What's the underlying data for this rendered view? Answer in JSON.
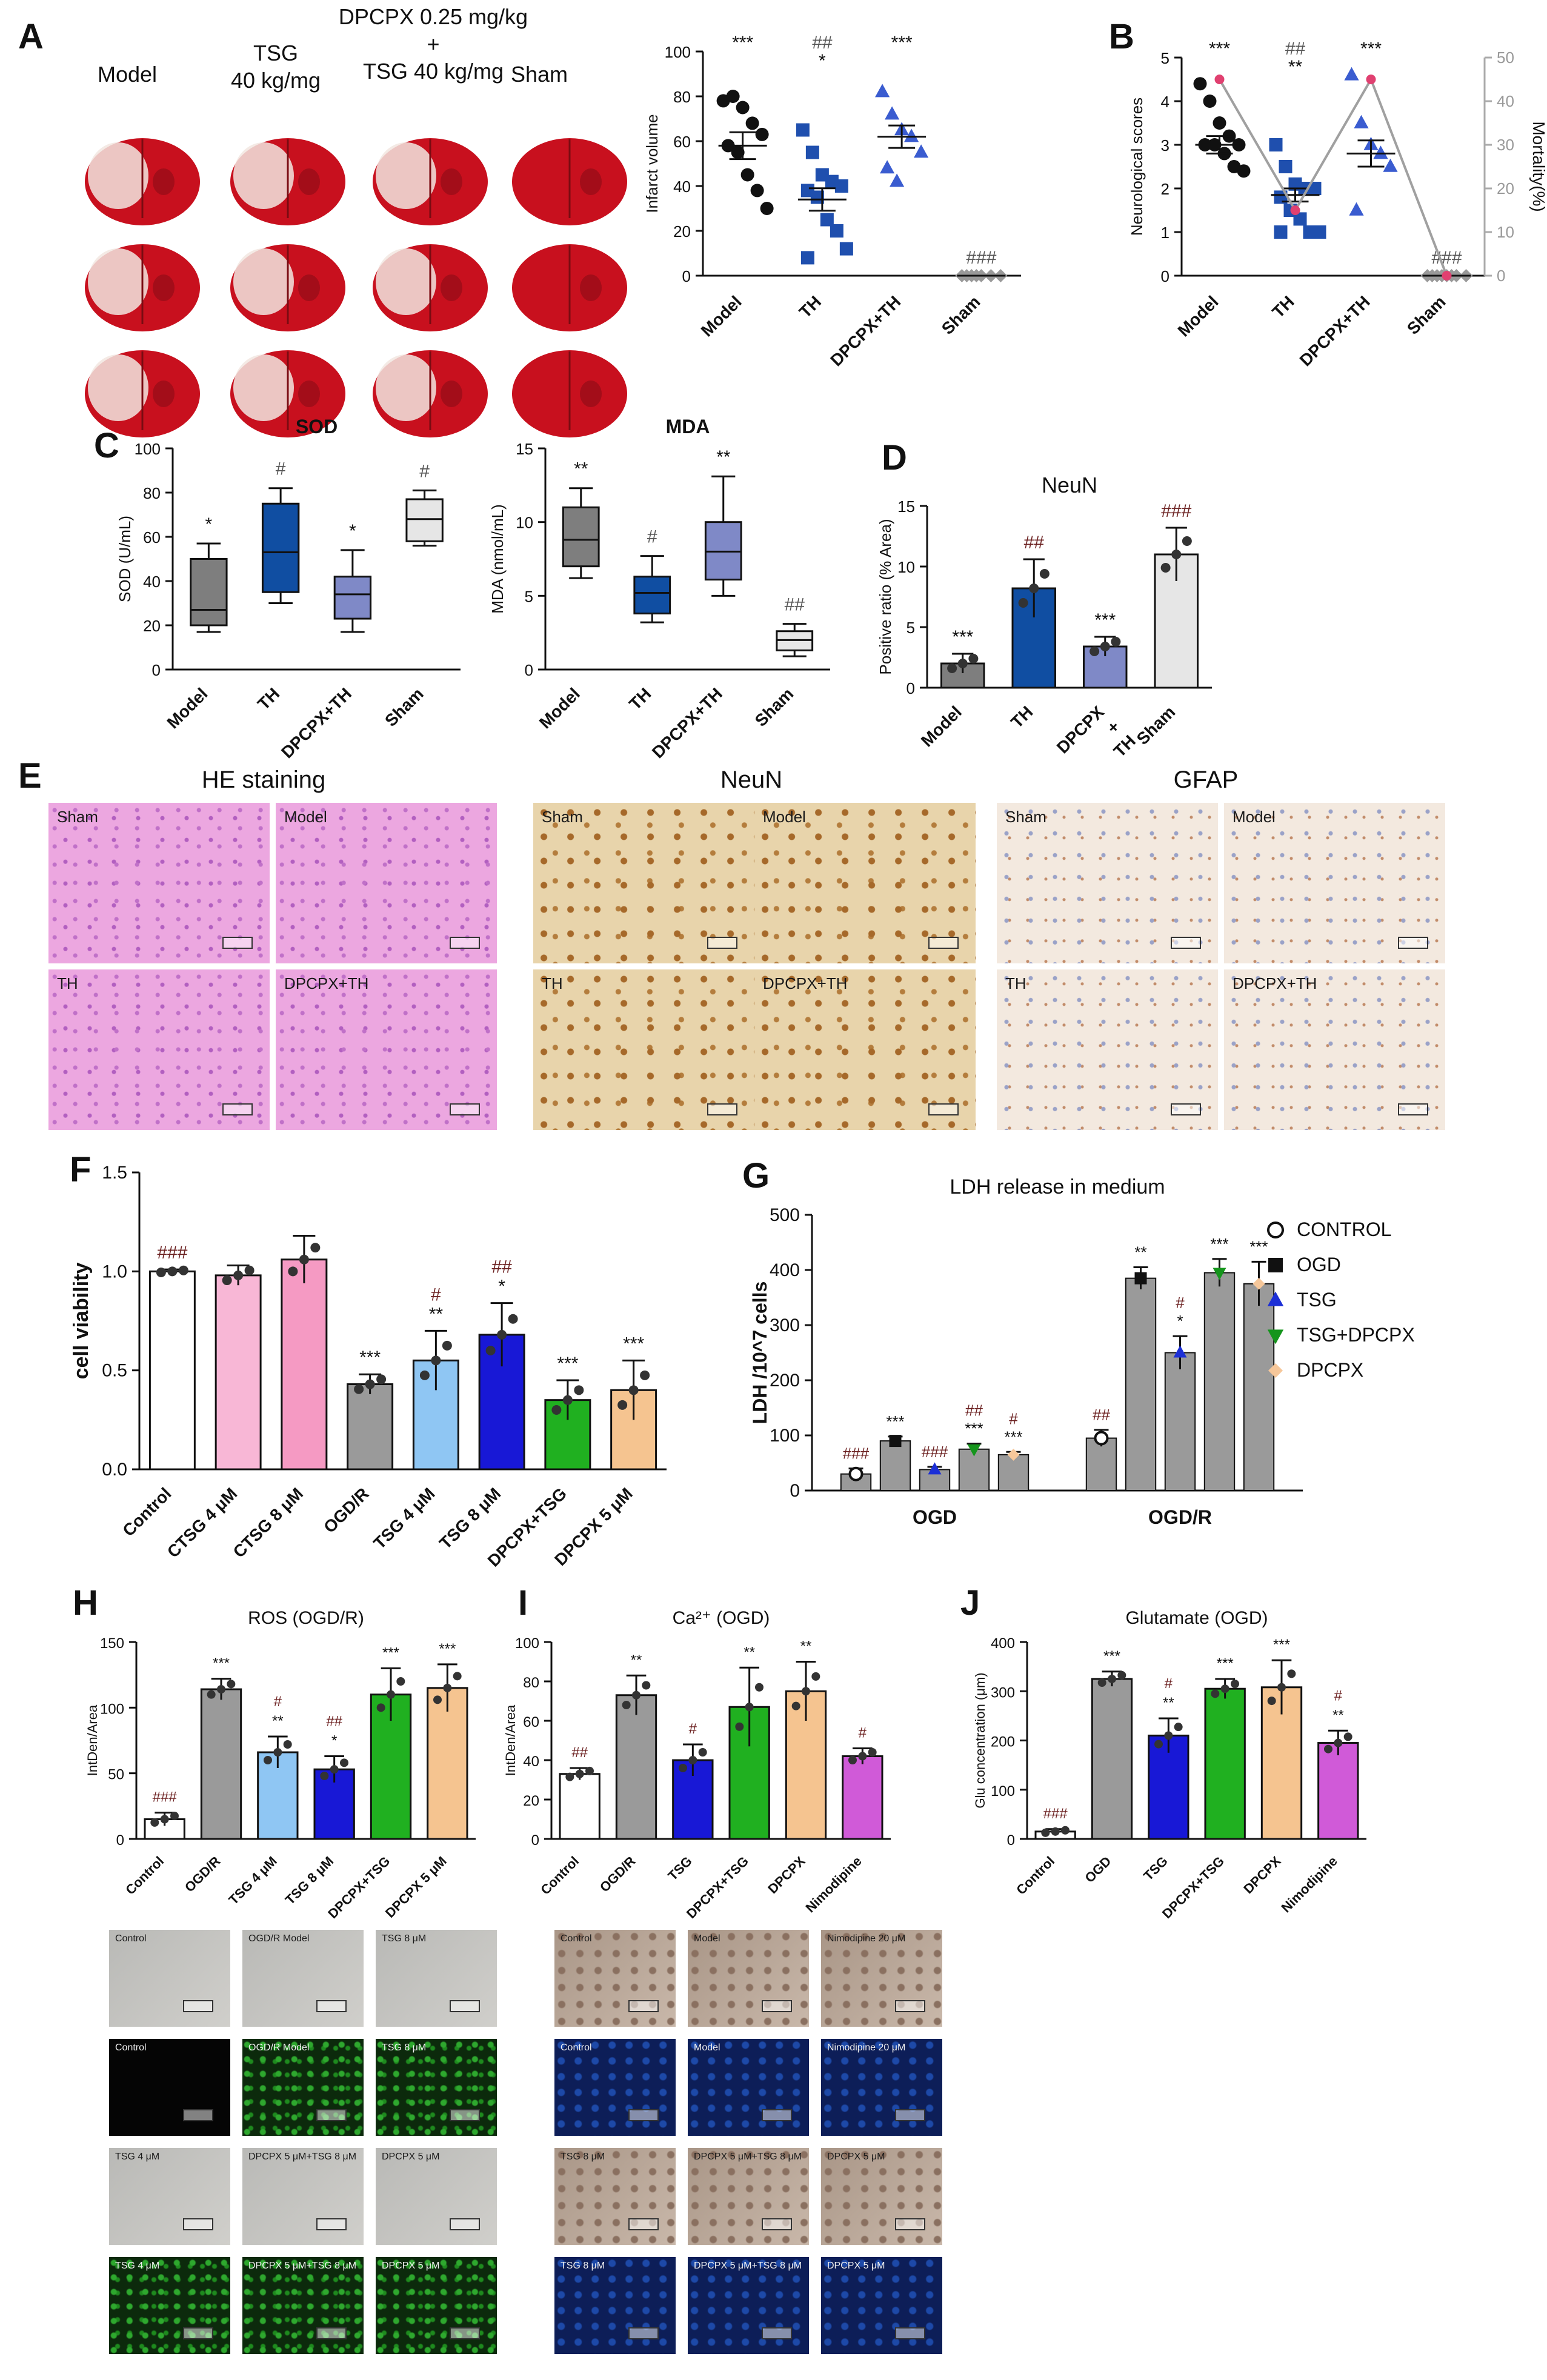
{
  "panel_letters": [
    "A",
    "B",
    "C",
    "D",
    "E",
    "F",
    "G",
    "H",
    "I",
    "J"
  ],
  "panel_A": {
    "group_labels": [
      "Model",
      "TSG\n40 kg/mg",
      "DPCPX 0.25 mg/kg\n+\nTSG 40 kg/mg",
      "Sham"
    ],
    "image_grid": "3 rows × 4 TTC-stained coronal brain slices",
    "colors": {
      "tissue_red": "#c8101e",
      "infarct_white": "#f2e6e0",
      "bg": "#ffffff"
    }
  },
  "panel_B": {
    "secondary_ylabel": "Mortality(%)",
    "secondary_ticks": [
      "0",
      "10",
      "20",
      "30",
      "40",
      "50"
    ],
    "mortality_percent": [
      45,
      15,
      45,
      0
    ]
  },
  "panel_E": {
    "section_titles": [
      "HE staining",
      "NeuN",
      "GFAP"
    ],
    "tile_labels": {
      "he": [
        "Sham",
        "Model",
        "TH",
        "DPCPX+TH"
      ],
      "neun": [
        "Sham",
        "Model",
        "TH",
        "DPCPX+TH"
      ],
      "gfap": [
        "Sham",
        "Model",
        "TH",
        "DPCPX+TH"
      ]
    },
    "colors": {
      "he": "#e9a6de",
      "neun": "#e6d2a8",
      "gfap": "#f1e7dc"
    }
  },
  "panel_G_legend": [
    {
      "label": "CONTROL",
      "color": "#ffffff",
      "marker": "open-circle"
    },
    {
      "label": "OGD",
      "color": "#111111",
      "marker": "square"
    },
    {
      "label": "TSG",
      "color": "#1c2fd6",
      "marker": "triangle"
    },
    {
      "label": "TSG+DPCPX",
      "color": "#15951c",
      "marker": "triangle-down"
    },
    {
      "label": "DPCPX",
      "color": "#f6c79a",
      "marker": "diamond"
    }
  ],
  "micro_H": {
    "rows": [
      [
        "Control",
        "OGD/R Model",
        "TSG 8 μM"
      ],
      [
        "Control",
        "OGD/R Model",
        "TSG 8 μM"
      ],
      [
        "TSG 4 μM",
        "DPCPX 5 μM+TSG 8 μM",
        "DPCPX 5 μM"
      ],
      [
        "TSG 4 μM",
        "DPCPX 5 μM+TSG 8 μM",
        "DPCPX 5 μM"
      ]
    ]
  },
  "micro_I": {
    "rows": [
      [
        "Control",
        "Model",
        "Nimodipine 20 μM"
      ],
      [
        "Control",
        "Model",
        "Nimodipine 20 μM"
      ],
      [
        "TSG 8 μM",
        "DPCPX 5 μM+TSG 8 μM",
        "DPCPX 5 μM"
      ],
      [
        "TSG 8 μM",
        "DPCPX 5 μM+TSG 8 μM",
        "DPCPX 5 μM"
      ]
    ]
  },
  "chart_data": [
    {
      "id": "A",
      "type": "scatter",
      "xlabel": "",
      "ylabel": "Infarct volume",
      "ylim": [
        0,
        100
      ],
      "yticks": [
        0,
        20,
        40,
        60,
        80,
        100
      ],
      "categories": [
        "Model",
        "TH",
        "DPCPX+TH",
        "Sham"
      ],
      "means": [
        58,
        34,
        62,
        0
      ],
      "sem": [
        6,
        5,
        5,
        0
      ],
      "sig": [
        "***",
        "##\n*",
        "***",
        "###"
      ],
      "points": [
        [
          78,
          80,
          75,
          68,
          63,
          58,
          55,
          45,
          38,
          30
        ],
        [
          65,
          55,
          45,
          42,
          40,
          38,
          35,
          25,
          20,
          12,
          8
        ],
        [
          82,
          72,
          65,
          62,
          55,
          48,
          42
        ],
        [
          0,
          0,
          0,
          0,
          0,
          0,
          0
        ]
      ],
      "colors": [
        "#111111",
        "#1f4fae",
        "#3a5cd0",
        "#999999"
      ],
      "markers": [
        "circle",
        "square",
        "triangle",
        "diamond"
      ]
    },
    {
      "id": "B",
      "type": "scatter",
      "xlabel": "",
      "ylabel": "Neurological scores",
      "ylim": [
        0,
        5
      ],
      "yticks": [
        0,
        1,
        2,
        3,
        4,
        5
      ],
      "categories": [
        "Model",
        "TH",
        "DPCPX+TH",
        "Sham"
      ],
      "means": [
        3,
        1.85,
        2.8,
        0
      ],
      "sem": [
        0.2,
        0.15,
        0.3,
        0
      ],
      "sig": [
        "***",
        "##\n**",
        "***",
        "###"
      ],
      "points": [
        [
          4.4,
          4,
          3.5,
          3.2,
          3,
          3,
          3,
          2.8,
          2.5,
          2.4
        ],
        [
          3,
          2.5,
          2.1,
          2,
          2,
          1.8,
          1.5,
          1.3,
          1,
          1,
          1
        ],
        [
          4.6,
          3.5,
          3,
          2.8,
          2.5,
          1.5
        ],
        [
          0,
          0,
          0,
          0,
          0,
          0,
          0,
          0
        ]
      ],
      "colors": [
        "#111111",
        "#1f4fae",
        "#3a5cd0",
        "#999999"
      ],
      "markers": [
        "circle",
        "square",
        "triangle",
        "diamond"
      ]
    },
    {
      "id": "C1",
      "type": "box",
      "title": "SOD",
      "xlabel": "",
      "ylabel": "SOD (U/mL)",
      "ylim": [
        0,
        100
      ],
      "yticks": [
        0,
        20,
        40,
        60,
        80,
        100
      ],
      "categories": [
        "Model",
        "TH",
        "DPCPX+TH",
        "Sham"
      ],
      "box": [
        [
          17,
          20,
          27,
          50,
          57
        ],
        [
          30,
          35,
          53,
          75,
          82
        ],
        [
          17,
          23,
          34,
          42,
          54
        ],
        [
          56,
          58,
          68,
          77,
          81
        ]
      ],
      "sig": [
        "*",
        "#",
        "*",
        "#"
      ],
      "colors": [
        "#7e7e7e",
        "#104ea2",
        "#7f89c7",
        "#e6e6e6"
      ]
    },
    {
      "id": "C2",
      "type": "box",
      "title": "MDA",
      "xlabel": "",
      "ylabel": "MDA (nmol/mL)",
      "ylim": [
        0,
        15
      ],
      "yticks": [
        0,
        5,
        10,
        15
      ],
      "categories": [
        "Model",
        "TH",
        "DPCPX+TH",
        "Sham"
      ],
      "box": [
        [
          6.2,
          7,
          8.8,
          11,
          12.3
        ],
        [
          3.2,
          3.8,
          5.2,
          6.3,
          7.7
        ],
        [
          5,
          6.1,
          8,
          10,
          13.1
        ],
        [
          0.9,
          1.3,
          2,
          2.6,
          3.1
        ]
      ],
      "sig": [
        "**",
        "#",
        "**",
        "##"
      ],
      "colors": [
        "#7e7e7e",
        "#104ea2",
        "#7f89c7",
        "#e6e6e6"
      ]
    },
    {
      "id": "D",
      "type": "bar",
      "title": "NeuN",
      "xlabel": "",
      "ylabel": "Positive ratio (% Area)",
      "ylim": [
        0,
        15
      ],
      "yticks": [
        0,
        5,
        10,
        15
      ],
      "categories": [
        "Model",
        "TH",
        "DPCPX\n+\nTH",
        "Sham"
      ],
      "values": [
        2,
        8.2,
        3.4,
        11
      ],
      "err": [
        0.8,
        2.4,
        0.8,
        2.2
      ],
      "sig": [
        "***",
        "##",
        "***",
        "###"
      ],
      "colors": [
        "#7e7e7e",
        "#104ea2",
        "#7f89c7",
        "#e6e6e6"
      ]
    },
    {
      "id": "F",
      "type": "bar",
      "xlabel": "",
      "ylabel": "cell viability",
      "ylim": [
        0,
        1.5
      ],
      "yticks": [
        "0.0",
        "0.5",
        "1.0",
        "1.5"
      ],
      "categories": [
        "Control",
        "CTSG 4 μM",
        "CTSG 8 μM",
        "OGD/R",
        "TSG 4 μM",
        "TSG 8 μM",
        "DPCPX+TSG",
        "DPCPX 5 μM"
      ],
      "values": [
        1.0,
        0.98,
        1.06,
        0.43,
        0.55,
        0.68,
        0.35,
        0.4
      ],
      "err": [
        0.01,
        0.05,
        0.12,
        0.05,
        0.15,
        0.16,
        0.1,
        0.15
      ],
      "sig": [
        "###",
        "",
        "",
        "***",
        "#\n**",
        "##\n*",
        "***",
        "***"
      ],
      "colors": [
        "#ffffff",
        "#f8b7d6",
        "#f59ac3",
        "#9a9a9a",
        "#8fc6f3",
        "#1818d6",
        "#20b020",
        "#f5c490"
      ]
    },
    {
      "id": "G",
      "type": "bar",
      "title": "LDH release in medium",
      "xlabel": "",
      "ylabel": "LDH /10^7 cells",
      "ylim": [
        0,
        500
      ],
      "yticks": [
        0,
        100,
        200,
        300,
        400,
        500
      ],
      "groups": [
        "OGD",
        "OGD/R"
      ],
      "series": [
        {
          "name": "CONTROL",
          "values": [
            30,
            95
          ],
          "err": [
            10,
            15
          ]
        },
        {
          "name": "OGD",
          "values": [
            90,
            385
          ],
          "err": [
            8,
            20
          ]
        },
        {
          "name": "TSG",
          "values": [
            38,
            250
          ],
          "err": [
            5,
            30
          ]
        },
        {
          "name": "TSG+DPCPX",
          "values": [
            75,
            395
          ],
          "err": [
            10,
            25
          ]
        },
        {
          "name": "DPCPX",
          "values": [
            65,
            375
          ],
          "err": [
            5,
            40
          ]
        }
      ],
      "sig": [
        [
          "###",
          "***",
          "###",
          "##\n***",
          "#\n***"
        ],
        [
          "##",
          "**",
          "#\n*",
          "***",
          "***"
        ]
      ],
      "colors": [
        "#9a9a9a",
        "#9a9a9a",
        "#9a9a9a",
        "#9a9a9a",
        "#9a9a9a"
      ]
    },
    {
      "id": "H",
      "type": "bar",
      "title": "ROS (OGD/R)",
      "xlabel": "",
      "ylabel": "IntDen/Area",
      "ylim": [
        0,
        150
      ],
      "yticks": [
        0,
        50,
        100,
        150
      ],
      "categories": [
        "Control",
        "OGD/R",
        "TSG 4 μM",
        "TSG 8 μM",
        "DPCPX+TSG",
        "DPCPX 5 μM"
      ],
      "values": [
        15,
        114,
        66,
        53,
        110,
        115
      ],
      "err": [
        5,
        8,
        12,
        10,
        20,
        18
      ],
      "sig": [
        "###",
        "***",
        "#\n**",
        "##\n*",
        "***",
        "***"
      ],
      "colors": [
        "#ffffff",
        "#9a9a9a",
        "#8fc6f3",
        "#1818d6",
        "#20b020",
        "#f5c490"
      ]
    },
    {
      "id": "I",
      "type": "bar",
      "title": "Ca²⁺ (OGD)",
      "xlabel": "",
      "ylabel": "IntDen/Area",
      "ylim": [
        0,
        100
      ],
      "yticks": [
        0,
        20,
        40,
        60,
        80,
        100
      ],
      "categories": [
        "Control",
        "OGD/R",
        "TSG",
        "DPCPX+TSG",
        "DPCPX",
        "Nimodipine"
      ],
      "values": [
        33,
        73,
        40,
        67,
        75,
        42
      ],
      "err": [
        3,
        10,
        8,
        20,
        15,
        4
      ],
      "sig": [
        "##",
        "**",
        "#",
        "**",
        "**",
        "#"
      ],
      "colors": [
        "#ffffff",
        "#9a9a9a",
        "#1818d6",
        "#20b020",
        "#f5c490",
        "#d05ad8"
      ]
    },
    {
      "id": "J",
      "type": "bar",
      "title": "Glutamate (OGD)",
      "xlabel": "",
      "ylabel": "Glu concentration (μm)",
      "ylim": [
        0,
        400
      ],
      "yticks": [
        0,
        100,
        200,
        300,
        400
      ],
      "categories": [
        "Control",
        "OGD",
        "TSG",
        "DPCPX+TSG",
        "DPCPX",
        "Nimodipine"
      ],
      "values": [
        15,
        325,
        210,
        305,
        308,
        195
      ],
      "err": [
        5,
        15,
        35,
        20,
        55,
        25
      ],
      "sig": [
        "###",
        "***",
        "#\n**",
        "***",
        "***",
        "#\n**"
      ],
      "colors": [
        "#ffffff",
        "#9a9a9a",
        "#1818d6",
        "#20b020",
        "#f5c490",
        "#d05ad8"
      ]
    }
  ]
}
